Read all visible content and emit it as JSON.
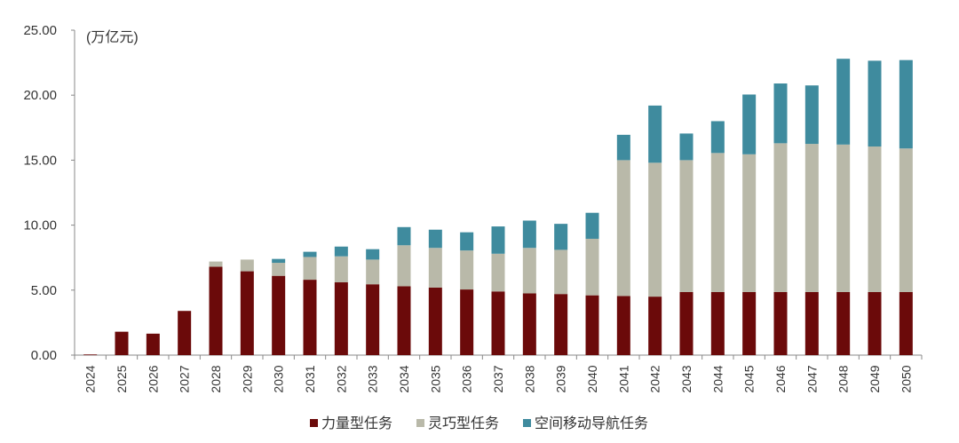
{
  "chart_data": {
    "type": "bar",
    "stacked": true,
    "unit_label": "(万亿元)",
    "ylim": [
      0,
      25
    ],
    "y_ticks": [
      "0.00",
      "5.00",
      "10.00",
      "15.00",
      "20.00",
      "25.00"
    ],
    "grid": false,
    "legend_position": "bottom",
    "categories": [
      "2024",
      "2025",
      "2026",
      "2027",
      "2028",
      "2029",
      "2030",
      "2031",
      "2032",
      "2033",
      "2034",
      "2035",
      "2036",
      "2037",
      "2038",
      "2039",
      "2040",
      "2041",
      "2042",
      "2043",
      "2044",
      "2045",
      "2046",
      "2047",
      "2048",
      "2049",
      "2050"
    ],
    "series": [
      {
        "name": "力量型任务",
        "color": "#6b0a0a",
        "values": [
          0.05,
          1.8,
          1.65,
          3.4,
          6.8,
          6.45,
          6.1,
          5.8,
          5.6,
          5.45,
          5.3,
          5.2,
          5.05,
          4.9,
          4.75,
          4.7,
          4.6,
          4.55,
          4.5,
          4.85,
          4.85,
          4.85,
          4.85,
          4.85,
          4.85,
          4.85,
          4.85
        ]
      },
      {
        "name": "灵巧型任务",
        "color": "#b9b9a9",
        "values": [
          0,
          0,
          0,
          0,
          0.4,
          0.9,
          1.0,
          1.75,
          2.0,
          1.9,
          3.15,
          3.05,
          3.0,
          2.9,
          3.5,
          3.4,
          4.35,
          10.45,
          10.3,
          10.15,
          10.7,
          10.6,
          11.45,
          11.4,
          11.35,
          11.2,
          11.05
        ]
      },
      {
        "name": "空间移动导航任务",
        "color": "#3f8b9e",
        "values": [
          0,
          0,
          0,
          0,
          0,
          0,
          0.3,
          0.4,
          0.75,
          0.8,
          1.4,
          1.4,
          1.4,
          2.1,
          2.1,
          2.0,
          2.0,
          1.95,
          4.4,
          2.05,
          2.45,
          4.6,
          4.6,
          4.5,
          6.6,
          6.6,
          6.8
        ]
      }
    ]
  }
}
